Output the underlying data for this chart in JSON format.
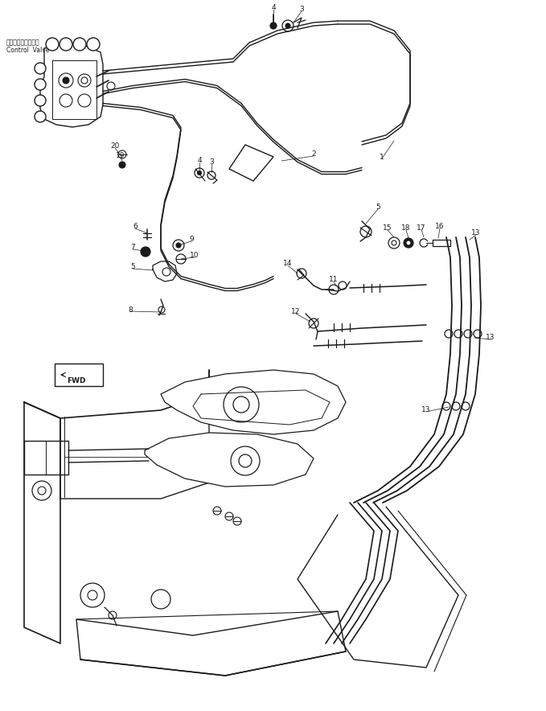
{
  "bg_color": "#ffffff",
  "line_color": "#1a1a1a",
  "lw": 1.0,
  "fig_width": 6.79,
  "fig_height": 8.84,
  "dpi": 100,
  "label_cv_jp": "コントロールバルブ",
  "label_cv_en": "Control  Valve",
  "label_fwd": "FWD"
}
